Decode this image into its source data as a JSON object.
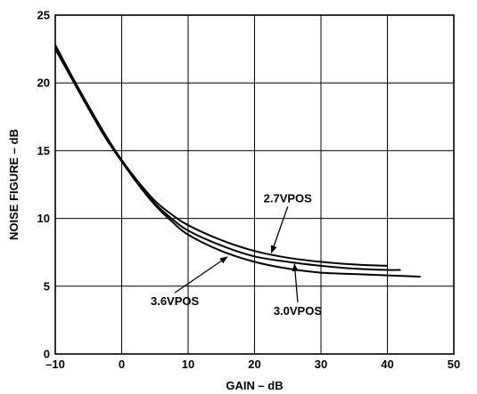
{
  "chart_data": {
    "type": "line",
    "xlabel": "GAIN – dB",
    "ylabel": "NOISE FIGURE – dB",
    "xlim": [
      -10,
      50
    ],
    "ylim": [
      0,
      25
    ],
    "xticks": [
      "–10",
      "0",
      "10",
      "20",
      "30",
      "40",
      "50"
    ],
    "yticks": [
      "0",
      "5",
      "10",
      "15",
      "20",
      "25"
    ],
    "grid": true,
    "series": [
      {
        "name": "2.7VPOS",
        "x": [
          -10,
          -7.5,
          -5,
          -2.5,
          0,
          2.5,
          5,
          7.5,
          10,
          15,
          20,
          25,
          30,
          35,
          40
        ],
        "y": [
          22.8,
          20.5,
          18.3,
          16.2,
          14.3,
          12.7,
          11.3,
          10.3,
          9.5,
          8.4,
          7.6,
          7.1,
          6.8,
          6.6,
          6.5
        ]
      },
      {
        "name": "3.0VPOS",
        "x": [
          -10,
          -7.5,
          -5,
          -2.5,
          0,
          2.5,
          5,
          7.5,
          10,
          15,
          20,
          25,
          30,
          35,
          40,
          42
        ],
        "y": [
          22.7,
          20.4,
          18.2,
          16.1,
          14.3,
          12.6,
          11.1,
          10.0,
          9.1,
          8.0,
          7.2,
          6.8,
          6.5,
          6.3,
          6.2,
          6.2
        ]
      },
      {
        "name": "3.6VPOS",
        "x": [
          -10,
          -7.5,
          -5,
          -2.5,
          0,
          2.5,
          5,
          7.5,
          10,
          15,
          20,
          25,
          30,
          35,
          40,
          45
        ],
        "y": [
          22.5,
          20.3,
          18.1,
          16.0,
          14.2,
          12.5,
          11.0,
          9.8,
          8.8,
          7.6,
          6.8,
          6.3,
          6.0,
          5.9,
          5.8,
          5.7
        ]
      }
    ],
    "annotations": [
      {
        "text": "2.7VPOS",
        "series": "2.7VPOS",
        "x": 22.5,
        "y": 7.4,
        "label_x": 25,
        "label_y": 11.2
      },
      {
        "text": "3.0VPOS",
        "series": "3.0VPOS",
        "x": 26,
        "y": 6.7,
        "label_x": 26.5,
        "label_y": 2.9
      },
      {
        "text": "3.6VPOS",
        "series": "3.6VPOS",
        "x": 16,
        "y": 7.2,
        "label_x": 8,
        "label_y": 3.6
      }
    ]
  }
}
